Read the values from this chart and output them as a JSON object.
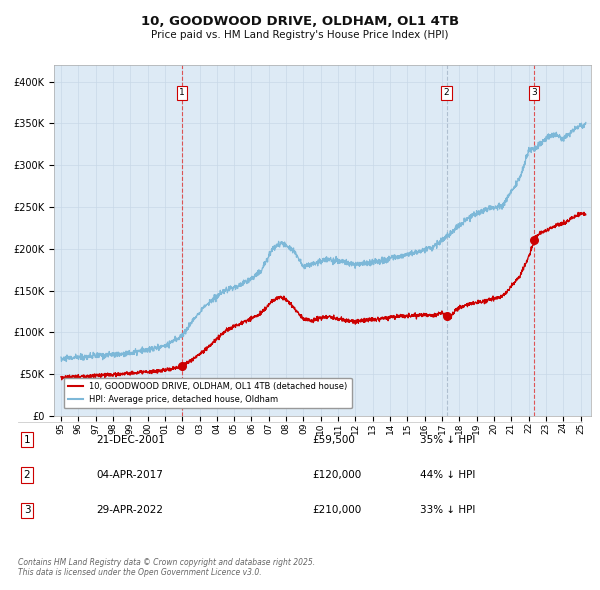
{
  "title": "10, GOODWOOD DRIVE, OLDHAM, OL1 4TB",
  "subtitle": "Price paid vs. HM Land Registry's House Price Index (HPI)",
  "hpi_color": "#7db8d8",
  "price_color": "#cc0000",
  "background_color": "#ddeaf5",
  "ylim": [
    0,
    420000
  ],
  "yticks": [
    0,
    50000,
    100000,
    150000,
    200000,
    250000,
    300000,
    350000,
    400000
  ],
  "ytick_labels": [
    "£0",
    "£50K",
    "£100K",
    "£150K",
    "£200K",
    "£250K",
    "£300K",
    "£350K",
    "£400K"
  ],
  "sales": [
    {
      "date_num": 2001.97,
      "price": 59500,
      "label": "1"
    },
    {
      "date_num": 2017.26,
      "price": 120000,
      "label": "2"
    },
    {
      "date_num": 2022.33,
      "price": 210000,
      "label": "3"
    }
  ],
  "vlines": [
    {
      "x": 2001.97,
      "color": "#dd4444",
      "ls": "--"
    },
    {
      "x": 2017.26,
      "color": "#aabbcc",
      "ls": "--"
    },
    {
      "x": 2022.33,
      "color": "#dd4444",
      "ls": "--"
    }
  ],
  "legend_entries": [
    "10, GOODWOOD DRIVE, OLDHAM, OL1 4TB (detached house)",
    "HPI: Average price, detached house, Oldham"
  ],
  "table_rows": [
    {
      "num": "1",
      "date": "21-DEC-2001",
      "price": "£59,500",
      "note": "35% ↓ HPI"
    },
    {
      "num": "2",
      "date": "04-APR-2017",
      "price": "£120,000",
      "note": "44% ↓ HPI"
    },
    {
      "num": "3",
      "date": "29-APR-2022",
      "price": "£210,000",
      "note": "33% ↓ HPI"
    }
  ],
  "footer": "Contains HM Land Registry data © Crown copyright and database right 2025.\nThis data is licensed under the Open Government Licence v3.0."
}
